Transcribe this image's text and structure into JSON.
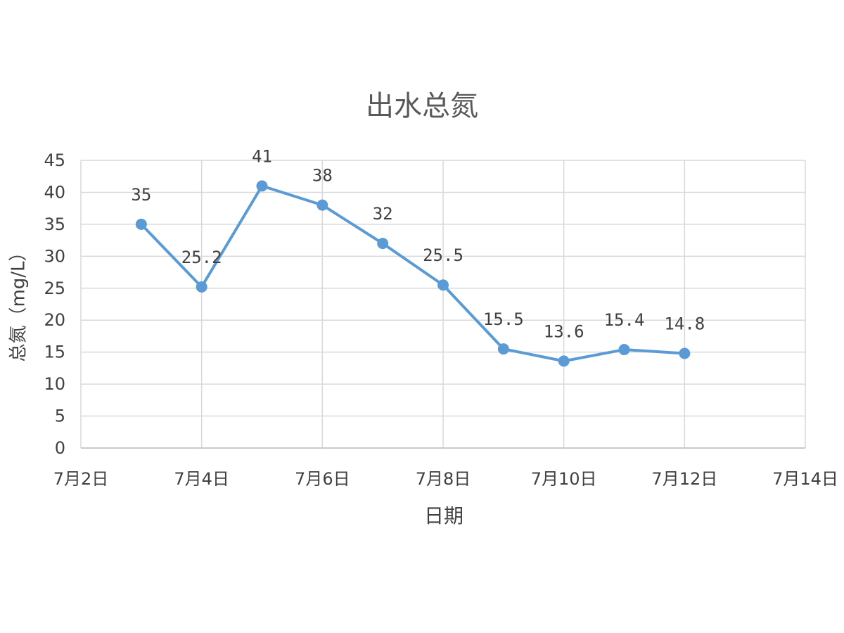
{
  "chart_data": {
    "type": "line",
    "title": "出水总氮",
    "xlabel": "日期",
    "ylabel": "总氮（mg/L）",
    "x_ticks": [
      "7月2日",
      "7月4日",
      "7月6日",
      "7月8日",
      "7月10日",
      "7月12日",
      "7月14日"
    ],
    "x_tick_days": [
      2,
      4,
      6,
      8,
      10,
      12,
      14
    ],
    "y_ticks": [
      0,
      5,
      10,
      15,
      20,
      25,
      30,
      35,
      40,
      45
    ],
    "xlim_days": [
      2,
      14
    ],
    "ylim": [
      0,
      45
    ],
    "grid": true,
    "series": [
      {
        "color": "#5b9bd5",
        "points": [
          {
            "x": "7月3日",
            "day": 3,
            "y": 35,
            "label": "35"
          },
          {
            "x": "7月4日",
            "day": 4,
            "y": 25.2,
            "label": "25.2"
          },
          {
            "x": "7月5日",
            "day": 5,
            "y": 41,
            "label": "41"
          },
          {
            "x": "7月6日",
            "day": 6,
            "y": 38,
            "label": "38"
          },
          {
            "x": "7月7日",
            "day": 7,
            "y": 32,
            "label": "32"
          },
          {
            "x": "7月8日",
            "day": 8,
            "y": 25.5,
            "label": "25.5"
          },
          {
            "x": "7月9日",
            "day": 9,
            "y": 15.5,
            "label": "15.5"
          },
          {
            "x": "7月10日",
            "day": 10,
            "y": 13.6,
            "label": "13.6"
          },
          {
            "x": "7月11日",
            "day": 11,
            "y": 15.4,
            "label": "15.4"
          },
          {
            "x": "7月12日",
            "day": 12,
            "y": 14.8,
            "label": "14.8"
          }
        ]
      }
    ]
  }
}
